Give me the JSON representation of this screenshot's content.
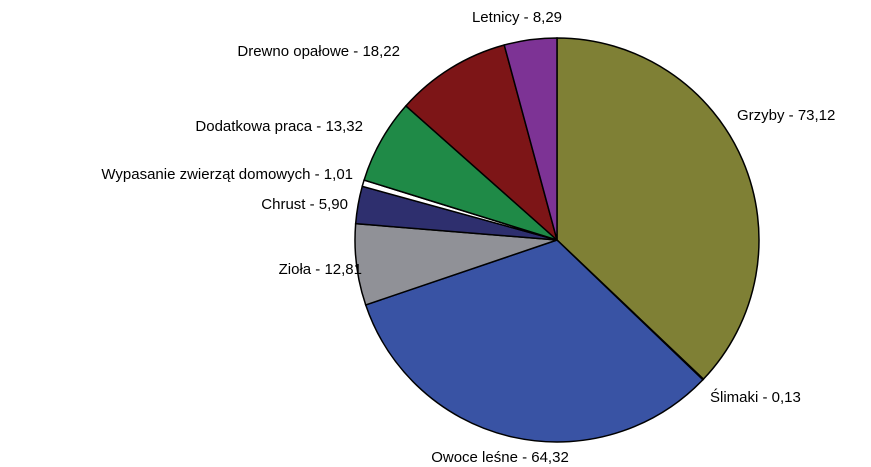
{
  "chart_data": {
    "type": "pie",
    "values": [
      73.12,
      0.13,
      64.32,
      12.81,
      5.9,
      1.01,
      13.32,
      18.22,
      8.29
    ],
    "value_labels": [
      "Grzyby - 73,12",
      "Ślimaki - 0,13",
      "Owoce leśne - 64,32",
      "Zioła - 12,81",
      "Chrust - 5,90",
      "Wypasanie zwierząt domowych - 1,01",
      "Dodatkowa praca - 13,32",
      "Drewno opałowe - 18,22",
      "Letnicy - 8,29"
    ],
    "colors": [
      "#7f8035",
      "#7f8035",
      "#3953a4",
      "#909197",
      "#2e2f6e",
      "#ffffff",
      "#1f8a47",
      "#7d1517",
      "#7d3395"
    ]
  }
}
